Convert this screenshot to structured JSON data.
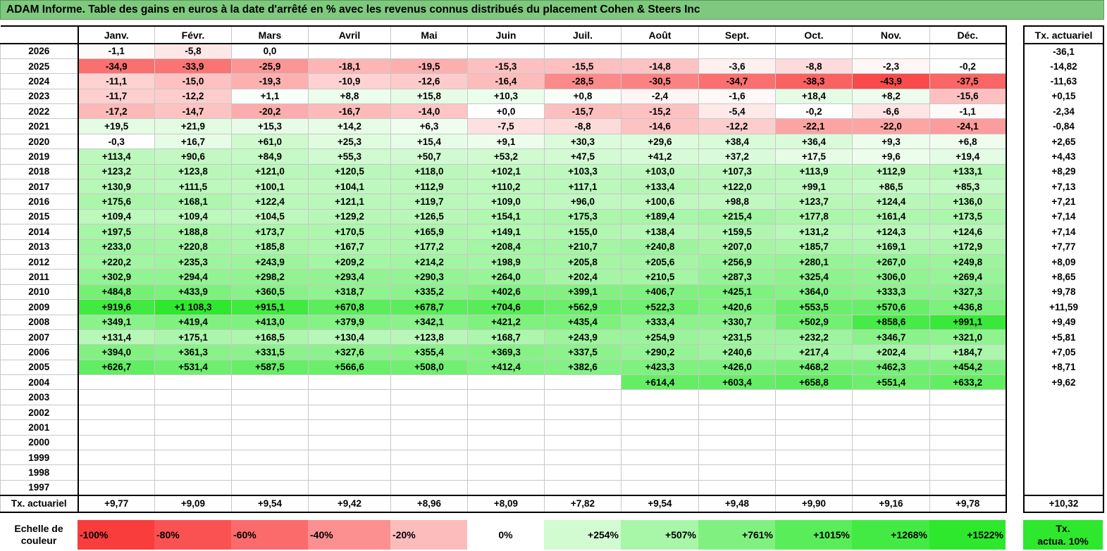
{
  "title": "ADAM Informe. Table des gains en euros à la date d'arrêté en % avec les revenus connus distribués du placement Cohen & Steers Inc",
  "months": [
    "Janv.",
    "Févr.",
    "Mars",
    "Avril",
    "Mai",
    "Juin",
    "Juil.",
    "Août",
    "Sept.",
    "Oct.",
    "Nov.",
    "Déc."
  ],
  "side_header": "Tx. actuariel",
  "rows": [
    {
      "year": "2026",
      "values": [
        "-1,1",
        "-5,8",
        "0,0",
        "",
        "",
        "",
        "",
        "",
        "",
        "",
        "",
        ""
      ],
      "tx": "-36,1"
    },
    {
      "year": "2025",
      "values": [
        "-34,9",
        "-33,9",
        "-25,9",
        "-18,1",
        "-19,5",
        "-15,3",
        "-15,5",
        "-14,8",
        "-3,6",
        "-8,8",
        "-2,3",
        "-0,2"
      ],
      "tx": "-14,82"
    },
    {
      "year": "2024",
      "values": [
        "-11,1",
        "-15,0",
        "-19,3",
        "-10,9",
        "-12,6",
        "-16,4",
        "-28,5",
        "-30,5",
        "-34,7",
        "-38,3",
        "-43,9",
        "-37,5"
      ],
      "tx": "-11,63"
    },
    {
      "year": "2023",
      "values": [
        "-11,7",
        "-12,2",
        "+1,1",
        "+8,8",
        "+15,8",
        "+10,3",
        "+0,8",
        "-2,4",
        "-1,6",
        "+18,4",
        "+8,2",
        "-15,6"
      ],
      "tx": "+0,15"
    },
    {
      "year": "2022",
      "values": [
        "-17,2",
        "-14,7",
        "-20,2",
        "-16,7",
        "-14,0",
        "+0,0",
        "-15,7",
        "-15,2",
        "-5,4",
        "-0,2",
        "-6,6",
        "-1,1"
      ],
      "tx": "-2,34"
    },
    {
      "year": "2021",
      "values": [
        "+19,5",
        "+21,9",
        "+15,3",
        "+14,2",
        "+6,3",
        "-7,5",
        "-8,8",
        "-14,6",
        "-12,2",
        "-22,1",
        "-22,0",
        "-24,1"
      ],
      "tx": "-0,84"
    },
    {
      "year": "2020",
      "values": [
        "-0,3",
        "+16,7",
        "+61,0",
        "+25,3",
        "+15,4",
        "+9,1",
        "+30,3",
        "+29,6",
        "+38,4",
        "+36,4",
        "+9,3",
        "+6,8"
      ],
      "tx": "+2,65"
    },
    {
      "year": "2019",
      "values": [
        "+113,4",
        "+90,6",
        "+84,9",
        "+55,3",
        "+50,7",
        "+53,2",
        "+47,5",
        "+41,2",
        "+37,2",
        "+17,5",
        "+9,6",
        "+19,4"
      ],
      "tx": "+4,43"
    },
    {
      "year": "2018",
      "values": [
        "+123,2",
        "+123,8",
        "+121,0",
        "+120,5",
        "+118,0",
        "+102,1",
        "+103,3",
        "+103,0",
        "+107,3",
        "+113,9",
        "+112,9",
        "+133,1"
      ],
      "tx": "+8,29"
    },
    {
      "year": "2017",
      "values": [
        "+130,9",
        "+111,5",
        "+100,1",
        "+104,1",
        "+112,9",
        "+110,2",
        "+117,1",
        "+133,4",
        "+122,0",
        "+99,1",
        "+86,5",
        "+85,3"
      ],
      "tx": "+7,13"
    },
    {
      "year": "2016",
      "values": [
        "+175,6",
        "+168,1",
        "+122,4",
        "+121,1",
        "+119,7",
        "+109,0",
        "+96,0",
        "+100,6",
        "+98,8",
        "+123,7",
        "+124,4",
        "+136,0"
      ],
      "tx": "+7,21"
    },
    {
      "year": "2015",
      "values": [
        "+109,4",
        "+109,4",
        "+104,5",
        "+129,2",
        "+126,5",
        "+154,1",
        "+175,3",
        "+189,4",
        "+215,4",
        "+177,8",
        "+161,4",
        "+173,5"
      ],
      "tx": "+7,14"
    },
    {
      "year": "2014",
      "values": [
        "+197,5",
        "+188,8",
        "+173,7",
        "+170,5",
        "+165,9",
        "+149,1",
        "+155,0",
        "+138,4",
        "+159,5",
        "+131,2",
        "+124,3",
        "+124,6"
      ],
      "tx": "+7,14"
    },
    {
      "year": "2013",
      "values": [
        "+233,0",
        "+220,8",
        "+185,8",
        "+167,7",
        "+177,2",
        "+208,4",
        "+210,7",
        "+240,8",
        "+207,0",
        "+185,7",
        "+169,1",
        "+172,9"
      ],
      "tx": "+7,77"
    },
    {
      "year": "2012",
      "values": [
        "+220,2",
        "+235,3",
        "+243,9",
        "+209,2",
        "+214,2",
        "+198,9",
        "+205,8",
        "+205,6",
        "+256,9",
        "+280,1",
        "+267,0",
        "+249,8"
      ],
      "tx": "+8,09"
    },
    {
      "year": "2011",
      "values": [
        "+302,9",
        "+294,4",
        "+298,2",
        "+293,4",
        "+290,3",
        "+264,0",
        "+202,4",
        "+210,5",
        "+287,3",
        "+325,4",
        "+306,0",
        "+269,4"
      ],
      "tx": "+8,65"
    },
    {
      "year": "2010",
      "values": [
        "+484,8",
        "+433,9",
        "+360,5",
        "+318,7",
        "+335,2",
        "+402,6",
        "+399,1",
        "+406,7",
        "+425,1",
        "+364,0",
        "+333,3",
        "+327,3"
      ],
      "tx": "+9,78"
    },
    {
      "year": "2009",
      "values": [
        "+919,6",
        "+1 108,3",
        "+915,1",
        "+670,8",
        "+678,7",
        "+704,6",
        "+562,9",
        "+522,3",
        "+420,6",
        "+553,5",
        "+570,6",
        "+436,8"
      ],
      "tx": "+11,59"
    },
    {
      "year": "2008",
      "values": [
        "+349,1",
        "+419,4",
        "+413,0",
        "+379,9",
        "+342,1",
        "+421,2",
        "+435,4",
        "+333,4",
        "+330,7",
        "+502,9",
        "+858,6",
        "+991,1"
      ],
      "tx": "+9,49"
    },
    {
      "year": "2007",
      "values": [
        "+131,4",
        "+175,1",
        "+168,5",
        "+130,4",
        "+123,8",
        "+168,7",
        "+243,9",
        "+254,9",
        "+231,5",
        "+232,2",
        "+346,7",
        "+321,0"
      ],
      "tx": "+5,81"
    },
    {
      "year": "2006",
      "values": [
        "+394,0",
        "+361,3",
        "+331,5",
        "+327,6",
        "+355,4",
        "+369,3",
        "+337,5",
        "+290,2",
        "+240,6",
        "+217,4",
        "+202,4",
        "+184,7"
      ],
      "tx": "+7,05"
    },
    {
      "year": "2005",
      "values": [
        "+626,7",
        "+531,4",
        "+587,5",
        "+566,6",
        "+508,0",
        "+412,4",
        "+382,6",
        "+423,3",
        "+426,0",
        "+468,2",
        "+462,3",
        "+454,2"
      ],
      "tx": "+8,71"
    },
    {
      "year": "2004",
      "values": [
        "",
        "",
        "",
        "",
        "",
        "",
        "",
        "+614,4",
        "+603,4",
        "+658,8",
        "+551,4",
        "+633,2"
      ],
      "tx": "+9,62"
    },
    {
      "year": "2003",
      "values": [
        "",
        "",
        "",
        "",
        "",
        "",
        "",
        "",
        "",
        "",
        "",
        ""
      ],
      "tx": ""
    },
    {
      "year": "2002",
      "values": [
        "",
        "",
        "",
        "",
        "",
        "",
        "",
        "",
        "",
        "",
        "",
        ""
      ],
      "tx": ""
    },
    {
      "year": "2001",
      "values": [
        "",
        "",
        "",
        "",
        "",
        "",
        "",
        "",
        "",
        "",
        "",
        ""
      ],
      "tx": ""
    },
    {
      "year": "2000",
      "values": [
        "",
        "",
        "",
        "",
        "",
        "",
        "",
        "",
        "",
        "",
        "",
        ""
      ],
      "tx": ""
    },
    {
      "year": "1999",
      "values": [
        "",
        "",
        "",
        "",
        "",
        "",
        "",
        "",
        "",
        "",
        "",
        ""
      ],
      "tx": ""
    },
    {
      "year": "1998",
      "values": [
        "",
        "",
        "",
        "",
        "",
        "",
        "",
        "",
        "",
        "",
        "",
        ""
      ],
      "tx": ""
    },
    {
      "year": "1997",
      "values": [
        "",
        "",
        "",
        "",
        "",
        "",
        "",
        "",
        "",
        "",
        "",
        ""
      ],
      "tx": ""
    }
  ],
  "footer": {
    "label": "Tx. actuariel",
    "values": [
      "+9,77",
      "+9,09",
      "+9,54",
      "+9,42",
      "+8,96",
      "+8,09",
      "+7,82",
      "+9,54",
      "+9,48",
      "+9,90",
      "+9,16",
      "+9,78"
    ],
    "tx": "+10,32"
  },
  "scale": {
    "label_line1": "Echelle de",
    "label_line2": "couleur",
    "steps": [
      {
        "text": "-100%",
        "color": "#f93c3c",
        "kind": "neg"
      },
      {
        "text": "-80%",
        "color": "#fa5252",
        "kind": "neg"
      },
      {
        "text": "-60%",
        "color": "#fb6b6b",
        "kind": "neg"
      },
      {
        "text": "-40%",
        "color": "#fc8f8f",
        "kind": "neg"
      },
      {
        "text": "-20%",
        "color": "#fdbcbc",
        "kind": "neg"
      },
      {
        "text": "0%",
        "color": "#ffffff",
        "kind": "zero"
      },
      {
        "text": "+254%",
        "color": "#d2fbd2",
        "kind": "pos"
      },
      {
        "text": "+507%",
        "color": "#a8f6a8",
        "kind": "pos"
      },
      {
        "text": "+761%",
        "color": "#80f180",
        "kind": "pos"
      },
      {
        "text": "+1015%",
        "color": "#5aed5a",
        "kind": "pos"
      },
      {
        "text": "+1268%",
        "color": "#44ea44",
        "kind": "pos"
      },
      {
        "text": "+1522%",
        "color": "#2ee82e",
        "kind": "pos"
      }
    ],
    "tx_line1": "Tx.",
    "tx_line2": "actua. 10%"
  }
}
